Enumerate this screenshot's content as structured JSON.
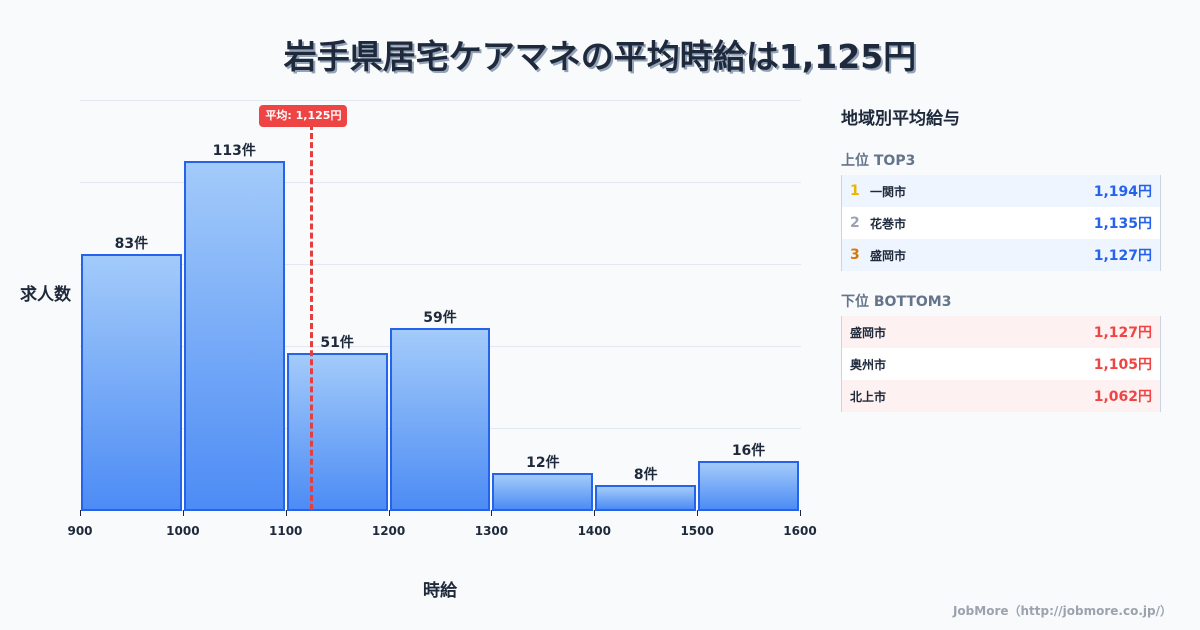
{
  "title": "岩手県居宅ケアマネの平均時給は1,125円",
  "chart_data": {
    "type": "bar",
    "title": "岩手県居宅ケアマネの平均時給は1,125円",
    "xlabel": "時給",
    "ylabel": "求人数",
    "bins": [
      [
        900,
        1000
      ],
      [
        1000,
        1100
      ],
      [
        1100,
        1200
      ],
      [
        1200,
        1300
      ],
      [
        1300,
        1400
      ],
      [
        1400,
        1500
      ],
      [
        1500,
        1600
      ]
    ],
    "categories": [
      "900-1000",
      "1000-1100",
      "1100-1200",
      "1200-1300",
      "1300-1400",
      "1400-1500",
      "1500-1600"
    ],
    "values": [
      83,
      113,
      51,
      59,
      12,
      8,
      16
    ],
    "value_labels": [
      "83件",
      "113件",
      "51件",
      "59件",
      "12件",
      "8件",
      "16件"
    ],
    "x_ticks": [
      "900",
      "1000",
      "1100",
      "1200",
      "1300",
      "1400",
      "1500",
      "1600"
    ],
    "xlim": [
      900,
      1600
    ],
    "ylim": [
      0,
      132.8
    ],
    "grid": true,
    "average": {
      "value": 1125,
      "label": "平均: 1,125円",
      "color": "#ef4444"
    },
    "bar_color": "#2563eb"
  },
  "panel": {
    "title": "地域別平均給与",
    "top": {
      "heading": "上位 TOP3",
      "rows": [
        {
          "rank": "1",
          "city": "一関市",
          "value": "1,194円",
          "rank_color": "#eab308"
        },
        {
          "rank": "2",
          "city": "花巻市",
          "value": "1,135円",
          "rank_color": "#9ca3af"
        },
        {
          "rank": "3",
          "city": "盛岡市",
          "value": "1,127円",
          "rank_color": "#d97706"
        }
      ]
    },
    "bottom": {
      "heading": "下位 BOTTOM3",
      "rows": [
        {
          "city": "盛岡市",
          "value": "1,127円"
        },
        {
          "city": "奥州市",
          "value": "1,105円"
        },
        {
          "city": "北上市",
          "value": "1,062円"
        }
      ]
    }
  },
  "footer": "JobMore（http://jobmore.co.jp/）"
}
